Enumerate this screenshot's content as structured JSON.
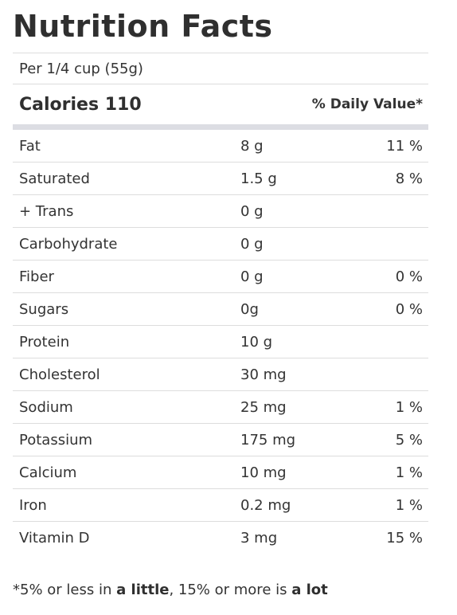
{
  "title": "Nutrition Facts",
  "serving": "Per 1/4 cup (55g)",
  "calories_label": "Calories 110",
  "daily_value_header": "% Daily Value*",
  "nutrients": [
    {
      "name": "Fat",
      "amount": "8 g",
      "dv": "11 %"
    },
    {
      "name": "Saturated",
      "amount": "1.5 g",
      "dv": "8 %"
    },
    {
      "name": "+ Trans",
      "amount": "0 g",
      "dv": ""
    },
    {
      "name": "Carbohydrate",
      "amount": "0 g",
      "dv": ""
    },
    {
      "name": "Fiber",
      "amount": "0 g",
      "dv": "0 %"
    },
    {
      "name": "Sugars",
      "amount": "0g",
      "dv": "0 %"
    },
    {
      "name": "Protein",
      "amount": "10 g",
      "dv": ""
    },
    {
      "name": "Cholesterol",
      "amount": "30 mg",
      "dv": ""
    },
    {
      "name": "Sodium",
      "amount": "25 mg",
      "dv": "1 %"
    },
    {
      "name": "Potassium",
      "amount": "175 mg",
      "dv": "5 %"
    },
    {
      "name": "Calcium",
      "amount": "10 mg",
      "dv": "1 %"
    },
    {
      "name": "Iron",
      "amount": "0.2 mg",
      "dv": "1 %"
    },
    {
      "name": "Vitamin D",
      "amount": "3 mg",
      "dv": "15 %"
    }
  ],
  "footnote": {
    "part1": "*5% or less in ",
    "bold1": "a little",
    "part2": ", 15% or more is ",
    "bold2": "a lot"
  }
}
